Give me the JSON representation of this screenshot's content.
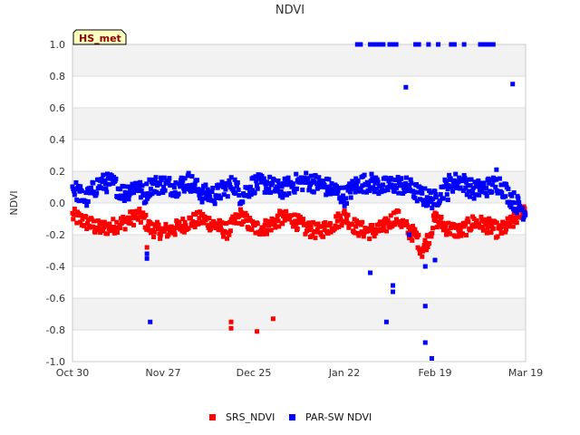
{
  "chart_data": {
    "type": "scatter",
    "title": "NDVI",
    "xlabel": "",
    "ylabel": "NDVI",
    "site_badge": "HS_met",
    "ylim": [
      -1.0,
      1.0
    ],
    "xlim_days": [
      0,
      140
    ],
    "yticks": [
      "-1.0",
      "-0.8",
      "-0.6",
      "-0.4",
      "-0.2",
      "0.0",
      "0.2",
      "0.4",
      "0.6",
      "0.8",
      "1.0"
    ],
    "xticks": [
      {
        "label": "Oct 30",
        "day": 0
      },
      {
        "label": "Nov 27",
        "day": 28
      },
      {
        "label": "Dec 25",
        "day": 56
      },
      {
        "label": "Jan 22",
        "day": 84
      },
      {
        "label": "Feb 19",
        "day": 112
      },
      {
        "label": "Mar 19",
        "day": 140
      }
    ],
    "legend": [
      {
        "name": "SRS_NDVI",
        "color": "#ff0000"
      },
      {
        "name": "PAR-SW NDVI",
        "color": "#0000ff"
      }
    ],
    "colors": {
      "srs": "#ff0000",
      "par": "#0000ff",
      "band": "#f2f2f2",
      "grid": "#dddddd"
    },
    "series": [
      {
        "name": "SRS_NDVI",
        "daily_mean": [
          [
            0,
            -0.08
          ],
          [
            4,
            -0.12
          ],
          [
            8,
            -0.16
          ],
          [
            12,
            -0.15
          ],
          [
            16,
            -0.12
          ],
          [
            20,
            -0.08
          ],
          [
            22,
            -0.1
          ],
          [
            24,
            -0.16
          ],
          [
            28,
            -0.18
          ],
          [
            32,
            -0.16
          ],
          [
            36,
            -0.12
          ],
          [
            40,
            -0.1
          ],
          [
            44,
            -0.14
          ],
          [
            48,
            -0.18
          ],
          [
            50,
            -0.12
          ],
          [
            52,
            -0.08
          ],
          [
            56,
            -0.16
          ],
          [
            60,
            -0.15
          ],
          [
            64,
            -0.1
          ],
          [
            68,
            -0.1
          ],
          [
            72,
            -0.16
          ],
          [
            76,
            -0.18
          ],
          [
            80,
            -0.14
          ],
          [
            84,
            -0.08
          ],
          [
            88,
            -0.16
          ],
          [
            92,
            -0.18
          ],
          [
            96,
            -0.16
          ],
          [
            100,
            -0.08
          ],
          [
            104,
            -0.18
          ],
          [
            106,
            -0.2
          ],
          [
            108,
            -0.3
          ],
          [
            110,
            -0.22
          ],
          [
            112,
            -0.1
          ],
          [
            116,
            -0.16
          ],
          [
            120,
            -0.18
          ],
          [
            124,
            -0.12
          ],
          [
            128,
            -0.14
          ],
          [
            132,
            -0.18
          ],
          [
            136,
            -0.12
          ],
          [
            140,
            -0.02
          ]
        ],
        "outliers": [
          [
            23,
            -0.28
          ],
          [
            49,
            -0.75
          ],
          [
            49,
            -0.79
          ],
          [
            57,
            -0.81
          ],
          [
            62,
            -0.73
          ]
        ]
      },
      {
        "name": "PAR-SW NDVI",
        "daily_mean": [
          [
            0,
            0.1
          ],
          [
            4,
            0.02
          ],
          [
            8,
            0.12
          ],
          [
            12,
            0.13
          ],
          [
            16,
            0.06
          ],
          [
            20,
            0.12
          ],
          [
            22,
            0.04
          ],
          [
            24,
            0.11
          ],
          [
            28,
            0.12
          ],
          [
            32,
            0.1
          ],
          [
            36,
            0.14
          ],
          [
            40,
            0.06
          ],
          [
            44,
            0.05
          ],
          [
            48,
            0.1
          ],
          [
            50,
            0.12
          ],
          [
            52,
            0.04
          ],
          [
            56,
            0.12
          ],
          [
            60,
            0.12
          ],
          [
            64,
            0.08
          ],
          [
            68,
            0.12
          ],
          [
            72,
            0.14
          ],
          [
            76,
            0.12
          ],
          [
            80,
            0.09
          ],
          [
            84,
            0.04
          ],
          [
            88,
            0.12
          ],
          [
            92,
            0.13
          ],
          [
            96,
            0.1
          ],
          [
            100,
            0.12
          ],
          [
            104,
            0.1
          ],
          [
            108,
            0.04
          ],
          [
            112,
            0.02
          ],
          [
            116,
            0.12
          ],
          [
            120,
            0.14
          ],
          [
            124,
            0.08
          ],
          [
            128,
            0.1
          ],
          [
            132,
            0.12
          ],
          [
            136,
            0.02
          ],
          [
            140,
            -0.06
          ]
        ],
        "outliers": [
          [
            88,
            1.0
          ],
          [
            89,
            1.0
          ],
          [
            92,
            1.0
          ],
          [
            93,
            1.0
          ],
          [
            94,
            1.0
          ],
          [
            95,
            1.0
          ],
          [
            96,
            1.0
          ],
          [
            98,
            1.0
          ],
          [
            99,
            1.0
          ],
          [
            100,
            1.0
          ],
          [
            106,
            1.0
          ],
          [
            107,
            1.0
          ],
          [
            110,
            1.0
          ],
          [
            113,
            1.0
          ],
          [
            117,
            1.0
          ],
          [
            118,
            1.0
          ],
          [
            121,
            1.0
          ],
          [
            126,
            1.0
          ],
          [
            127,
            1.0
          ],
          [
            128,
            1.0
          ],
          [
            129,
            1.0
          ],
          [
            130,
            1.0
          ],
          [
            103,
            0.73
          ],
          [
            136,
            0.75
          ],
          [
            23,
            -0.35
          ],
          [
            23,
            -0.32
          ],
          [
            24,
            -0.75
          ],
          [
            92,
            -0.44
          ],
          [
            97,
            -0.75
          ],
          [
            99,
            -0.52
          ],
          [
            99,
            -0.56
          ],
          [
            104,
            -0.2
          ],
          [
            109,
            -0.4
          ],
          [
            109,
            -0.65
          ],
          [
            109,
            -0.88
          ],
          [
            111,
            -0.98
          ],
          [
            112,
            -0.36
          ],
          [
            116,
            0.02
          ],
          [
            131,
            0.21
          ]
        ]
      }
    ]
  }
}
